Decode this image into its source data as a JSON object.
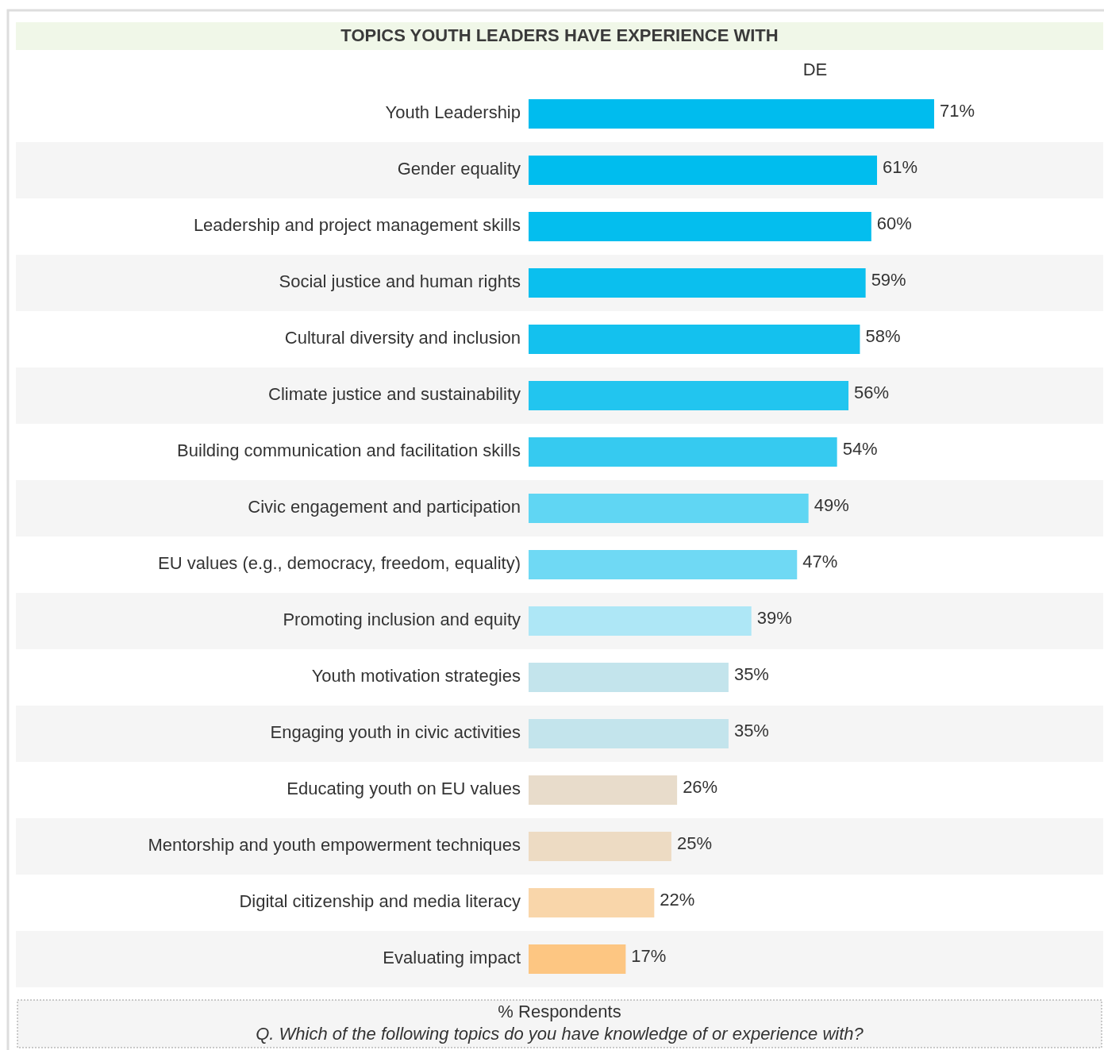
{
  "chart_data": {
    "type": "bar",
    "orientation": "horizontal",
    "title": "TOPICS YOUTH LEADERS HAVE EXPERIENCE WITH",
    "xlabel": "% Respondents",
    "annotations": [
      "Q. Which of the following topics do you have knowledge of or experience with?"
    ],
    "categories": [
      "Youth Leadership",
      "Gender equality",
      "Leadership and project management skills",
      "Social justice and human rights",
      "Cultural diversity and inclusion",
      "Climate justice and sustainability",
      "Building communication and facilitation skills",
      "Civic engagement and participation",
      "EU values (e.g., democracy, freedom, equality)",
      "Promoting inclusion and equity",
      "Youth motivation strategies",
      "Engaging youth in civic activities",
      "Educating youth on EU values",
      "Mentorship and youth empowerment techniques",
      "Digital citizenship and media literacy",
      "Evaluating impact"
    ],
    "series": [
      {
        "name": "DE",
        "values": [
          71,
          61,
          60,
          59,
          58,
          56,
          54,
          49,
          47,
          39,
          35,
          35,
          26,
          25,
          22,
          17
        ],
        "value_labels": [
          "71%",
          "61%",
          "60%",
          "59%",
          "58%",
          "56%",
          "54%",
          "49%",
          "47%",
          "39%",
          "35%",
          "35%",
          "26%",
          "25%",
          "22%",
          "17%"
        ],
        "colors": [
          "#00bcee",
          "#00bdee",
          "#04beee",
          "#0bbfee",
          "#14c1ee",
          "#22c5ef",
          "#36caf0",
          "#60d6f3",
          "#6fd9f4",
          "#aee7f6",
          "#c3e4ec",
          "#c3e4ec",
          "#e8dccb",
          "#eddbc3",
          "#f9d6aa",
          "#fdc682"
        ]
      }
    ]
  }
}
